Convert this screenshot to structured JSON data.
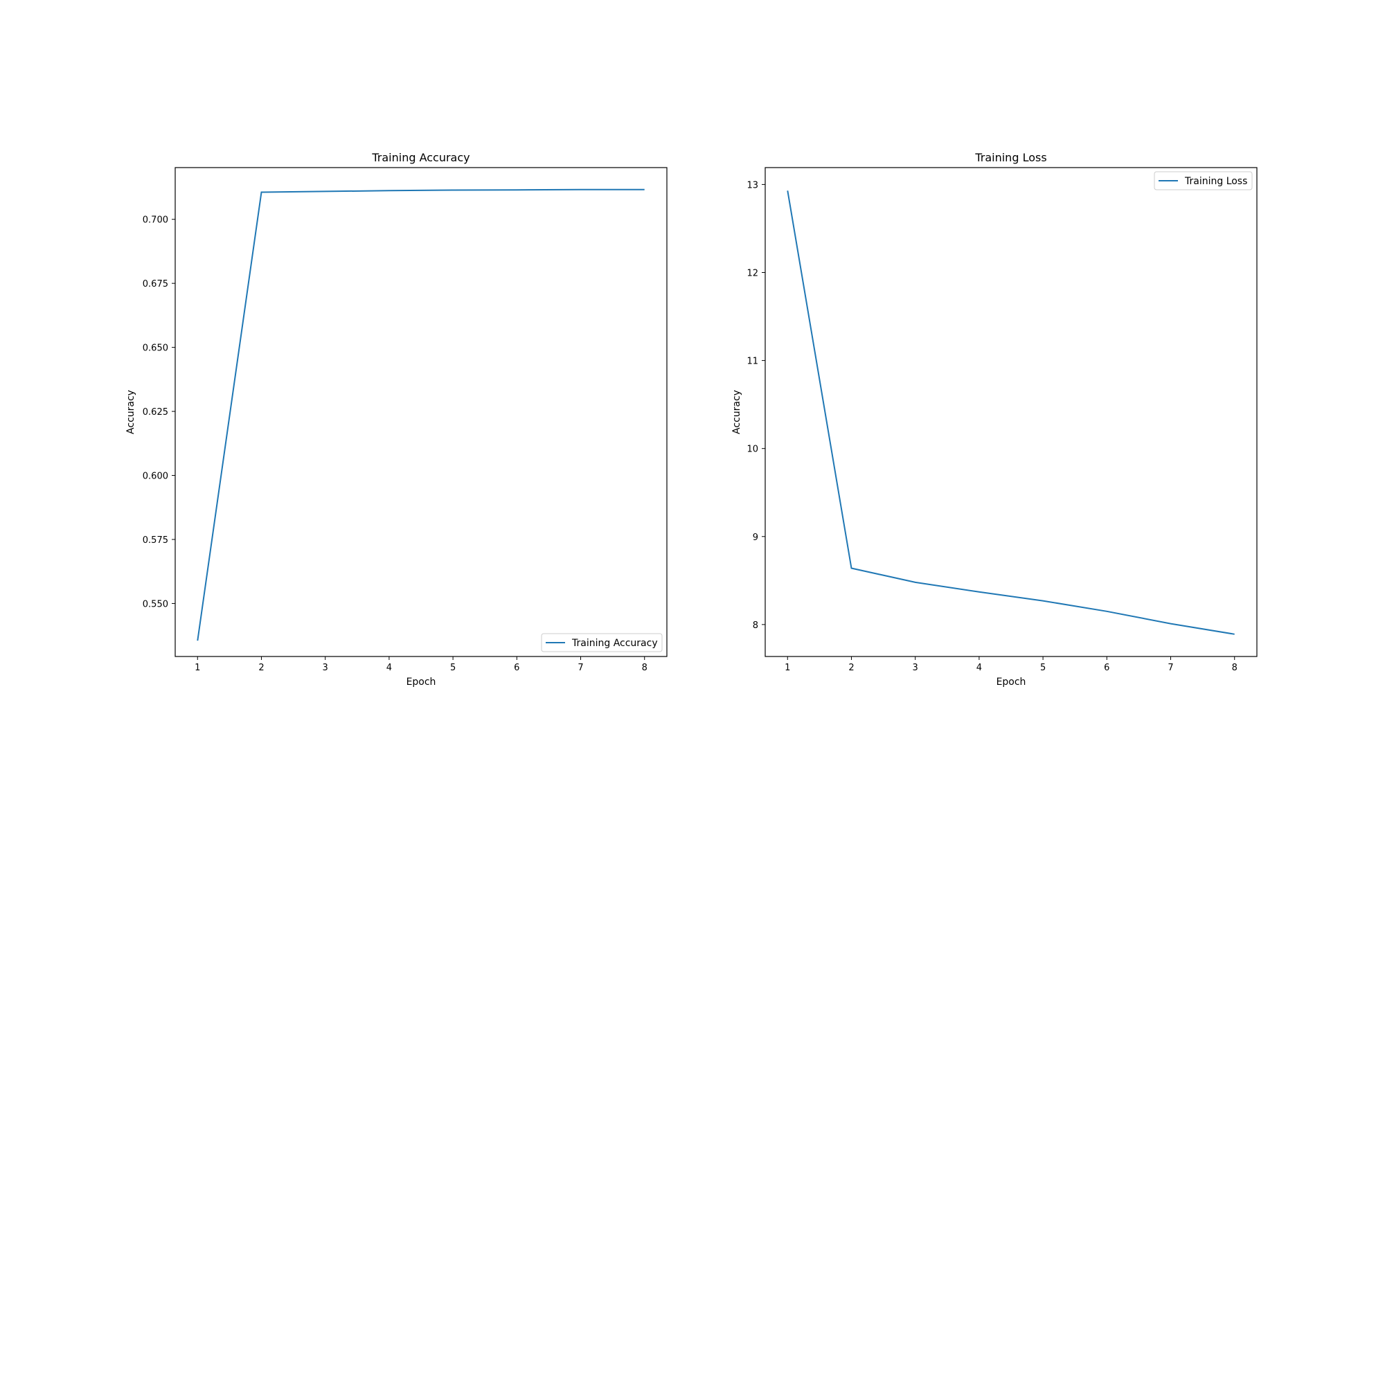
{
  "chart_data": [
    {
      "type": "line",
      "title": "Training Accuracy",
      "xlabel": "Epoch",
      "ylabel": "Accuracy",
      "x": [
        1,
        2,
        3,
        4,
        5,
        6,
        7,
        8
      ],
      "xticks": [
        1,
        2,
        3,
        4,
        5,
        6,
        7,
        8
      ],
      "xlim": [
        0.65,
        8.35
      ],
      "ylim": [
        0.5293,
        0.7202
      ],
      "yticks": [
        0.55,
        0.575,
        0.6,
        0.625,
        0.65,
        0.675,
        0.7
      ],
      "ytick_labels": [
        "0.550",
        "0.575",
        "0.600",
        "0.625",
        "0.650",
        "0.675",
        "0.700"
      ],
      "series": [
        {
          "name": "Training Accuracy",
          "color": "#1f77b4",
          "values": [
            0.5355,
            0.7106,
            0.7109,
            0.7112,
            0.7114,
            0.7115,
            0.7116,
            0.7116
          ]
        }
      ],
      "legend": "lower-right",
      "grid": false
    },
    {
      "type": "line",
      "title": "Training Loss",
      "xlabel": "Epoch",
      "ylabel": "Accuracy",
      "x": [
        1,
        2,
        3,
        4,
        5,
        6,
        7,
        8
      ],
      "xticks": [
        1,
        2,
        3,
        4,
        5,
        6,
        7,
        8
      ],
      "xlim": [
        0.65,
        8.35
      ],
      "ylim": [
        7.637,
        13.192
      ],
      "yticks": [
        8,
        9,
        10,
        11,
        12,
        13
      ],
      "ytick_labels": [
        "8",
        "9",
        "10",
        "11",
        "12",
        "13"
      ],
      "series": [
        {
          "name": "Training Loss",
          "color": "#1f77b4",
          "values": [
            12.93,
            8.64,
            8.48,
            8.37,
            8.27,
            8.15,
            8.01,
            7.89
          ]
        }
      ],
      "legend": "upper-right",
      "grid": false
    }
  ]
}
